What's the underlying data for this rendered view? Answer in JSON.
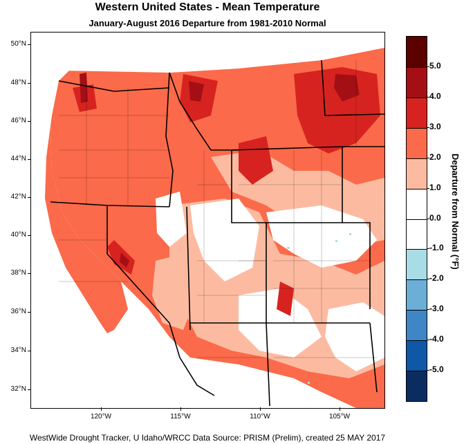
{
  "title": "Western United States - Mean Temperature",
  "subtitle": "January-August 2016  Departure from 1981-2010 Normal",
  "footer": "WestWide Drought Tracker, U Idaho/WRCC Data Source: PRISM (Prelim), created 25 MAY 2017",
  "lat_labels": [
    "50°N",
    "48°N",
    "46°N",
    "44°N",
    "42°N",
    "40°N",
    "38°N",
    "36°N",
    "34°N",
    "32°N"
  ],
  "lon_labels": [
    "120°W",
    "115°W",
    "110°W",
    "105°W"
  ],
  "colorbar": {
    "title": "Departure from Normal (°F)",
    "labels": [
      "5.0",
      "4.0",
      "3.0",
      "2.0",
      "1.0",
      "0.0",
      "-1.0",
      "-2.0",
      "-3.0",
      "-4.0",
      "-5.0"
    ],
    "colors": [
      "#5c0000",
      "#a30f15",
      "#d7231f",
      "#fb6a4a",
      "#fcbba1",
      "#ffffff",
      "#ffffff",
      "#a8dde6",
      "#6baed6",
      "#3e86c5",
      "#0f58a8",
      "#0b2c60"
    ]
  },
  "colors": {
    "hot": "#fb6a4a",
    "warm": "#fcbba1",
    "hotter": "#d7231f",
    "hottest": "#a30f15",
    "cool": "#a8dde6"
  }
}
